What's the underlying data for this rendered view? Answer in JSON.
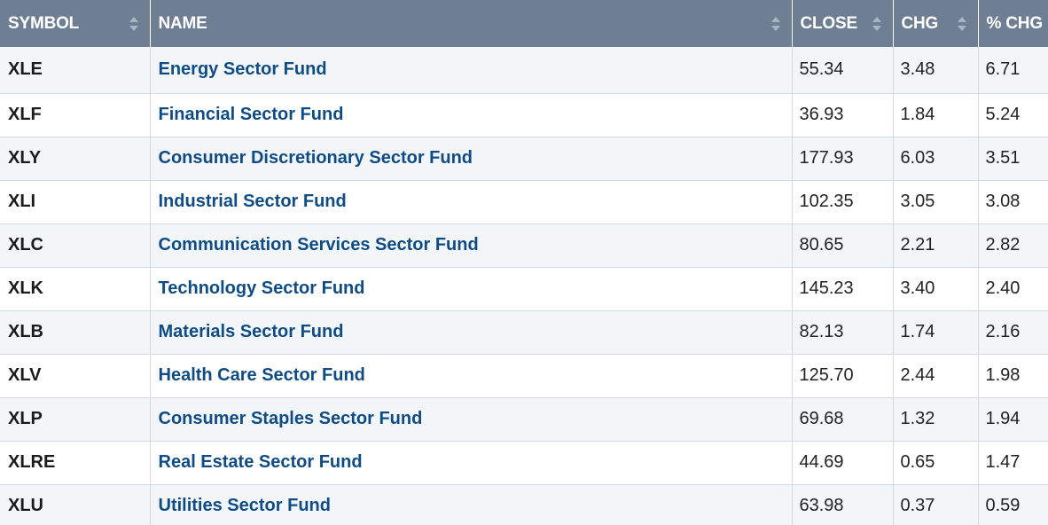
{
  "table": {
    "headers": {
      "symbol": "SYMBOL",
      "name": "NAME",
      "close": "CLOSE",
      "chg": "CHG",
      "pct_chg": "% CHG"
    },
    "rows": [
      {
        "symbol": "XLE",
        "name": "Energy Sector Fund",
        "close": "55.34",
        "chg": "3.48",
        "pct_chg": "6.71"
      },
      {
        "symbol": "XLF",
        "name": "Financial Sector Fund",
        "close": "36.93",
        "chg": "1.84",
        "pct_chg": "5.24"
      },
      {
        "symbol": "XLY",
        "name": "Consumer Discretionary Sector Fund",
        "close": "177.93",
        "chg": "6.03",
        "pct_chg": "3.51"
      },
      {
        "symbol": "XLI",
        "name": "Industrial Sector Fund",
        "close": "102.35",
        "chg": "3.05",
        "pct_chg": "3.08"
      },
      {
        "symbol": "XLC",
        "name": "Communication Services Sector Fund",
        "close": "80.65",
        "chg": "2.21",
        "pct_chg": "2.82"
      },
      {
        "symbol": "XLK",
        "name": "Technology Sector Fund",
        "close": "145.23",
        "chg": "3.40",
        "pct_chg": "2.40"
      },
      {
        "symbol": "XLB",
        "name": "Materials Sector Fund",
        "close": "82.13",
        "chg": "1.74",
        "pct_chg": "2.16"
      },
      {
        "symbol": "XLV",
        "name": "Health Care Sector Fund",
        "close": "125.70",
        "chg": "2.44",
        "pct_chg": "1.98"
      },
      {
        "symbol": "XLP",
        "name": "Consumer Staples Sector Fund",
        "close": "69.68",
        "chg": "1.32",
        "pct_chg": "1.94"
      },
      {
        "symbol": "XLRE",
        "name": "Real Estate Sector Fund",
        "close": "44.69",
        "chg": "0.65",
        "pct_chg": "1.47"
      },
      {
        "symbol": "XLU",
        "name": "Utilities Sector Fund",
        "close": "63.98",
        "chg": "0.37",
        "pct_chg": "0.59"
      }
    ]
  },
  "colors": {
    "header_bg": "#6f7f93",
    "link": "#0f4c86",
    "row_alt": "#f3f6f9"
  },
  "icons": {
    "sort": "sort-icon"
  }
}
